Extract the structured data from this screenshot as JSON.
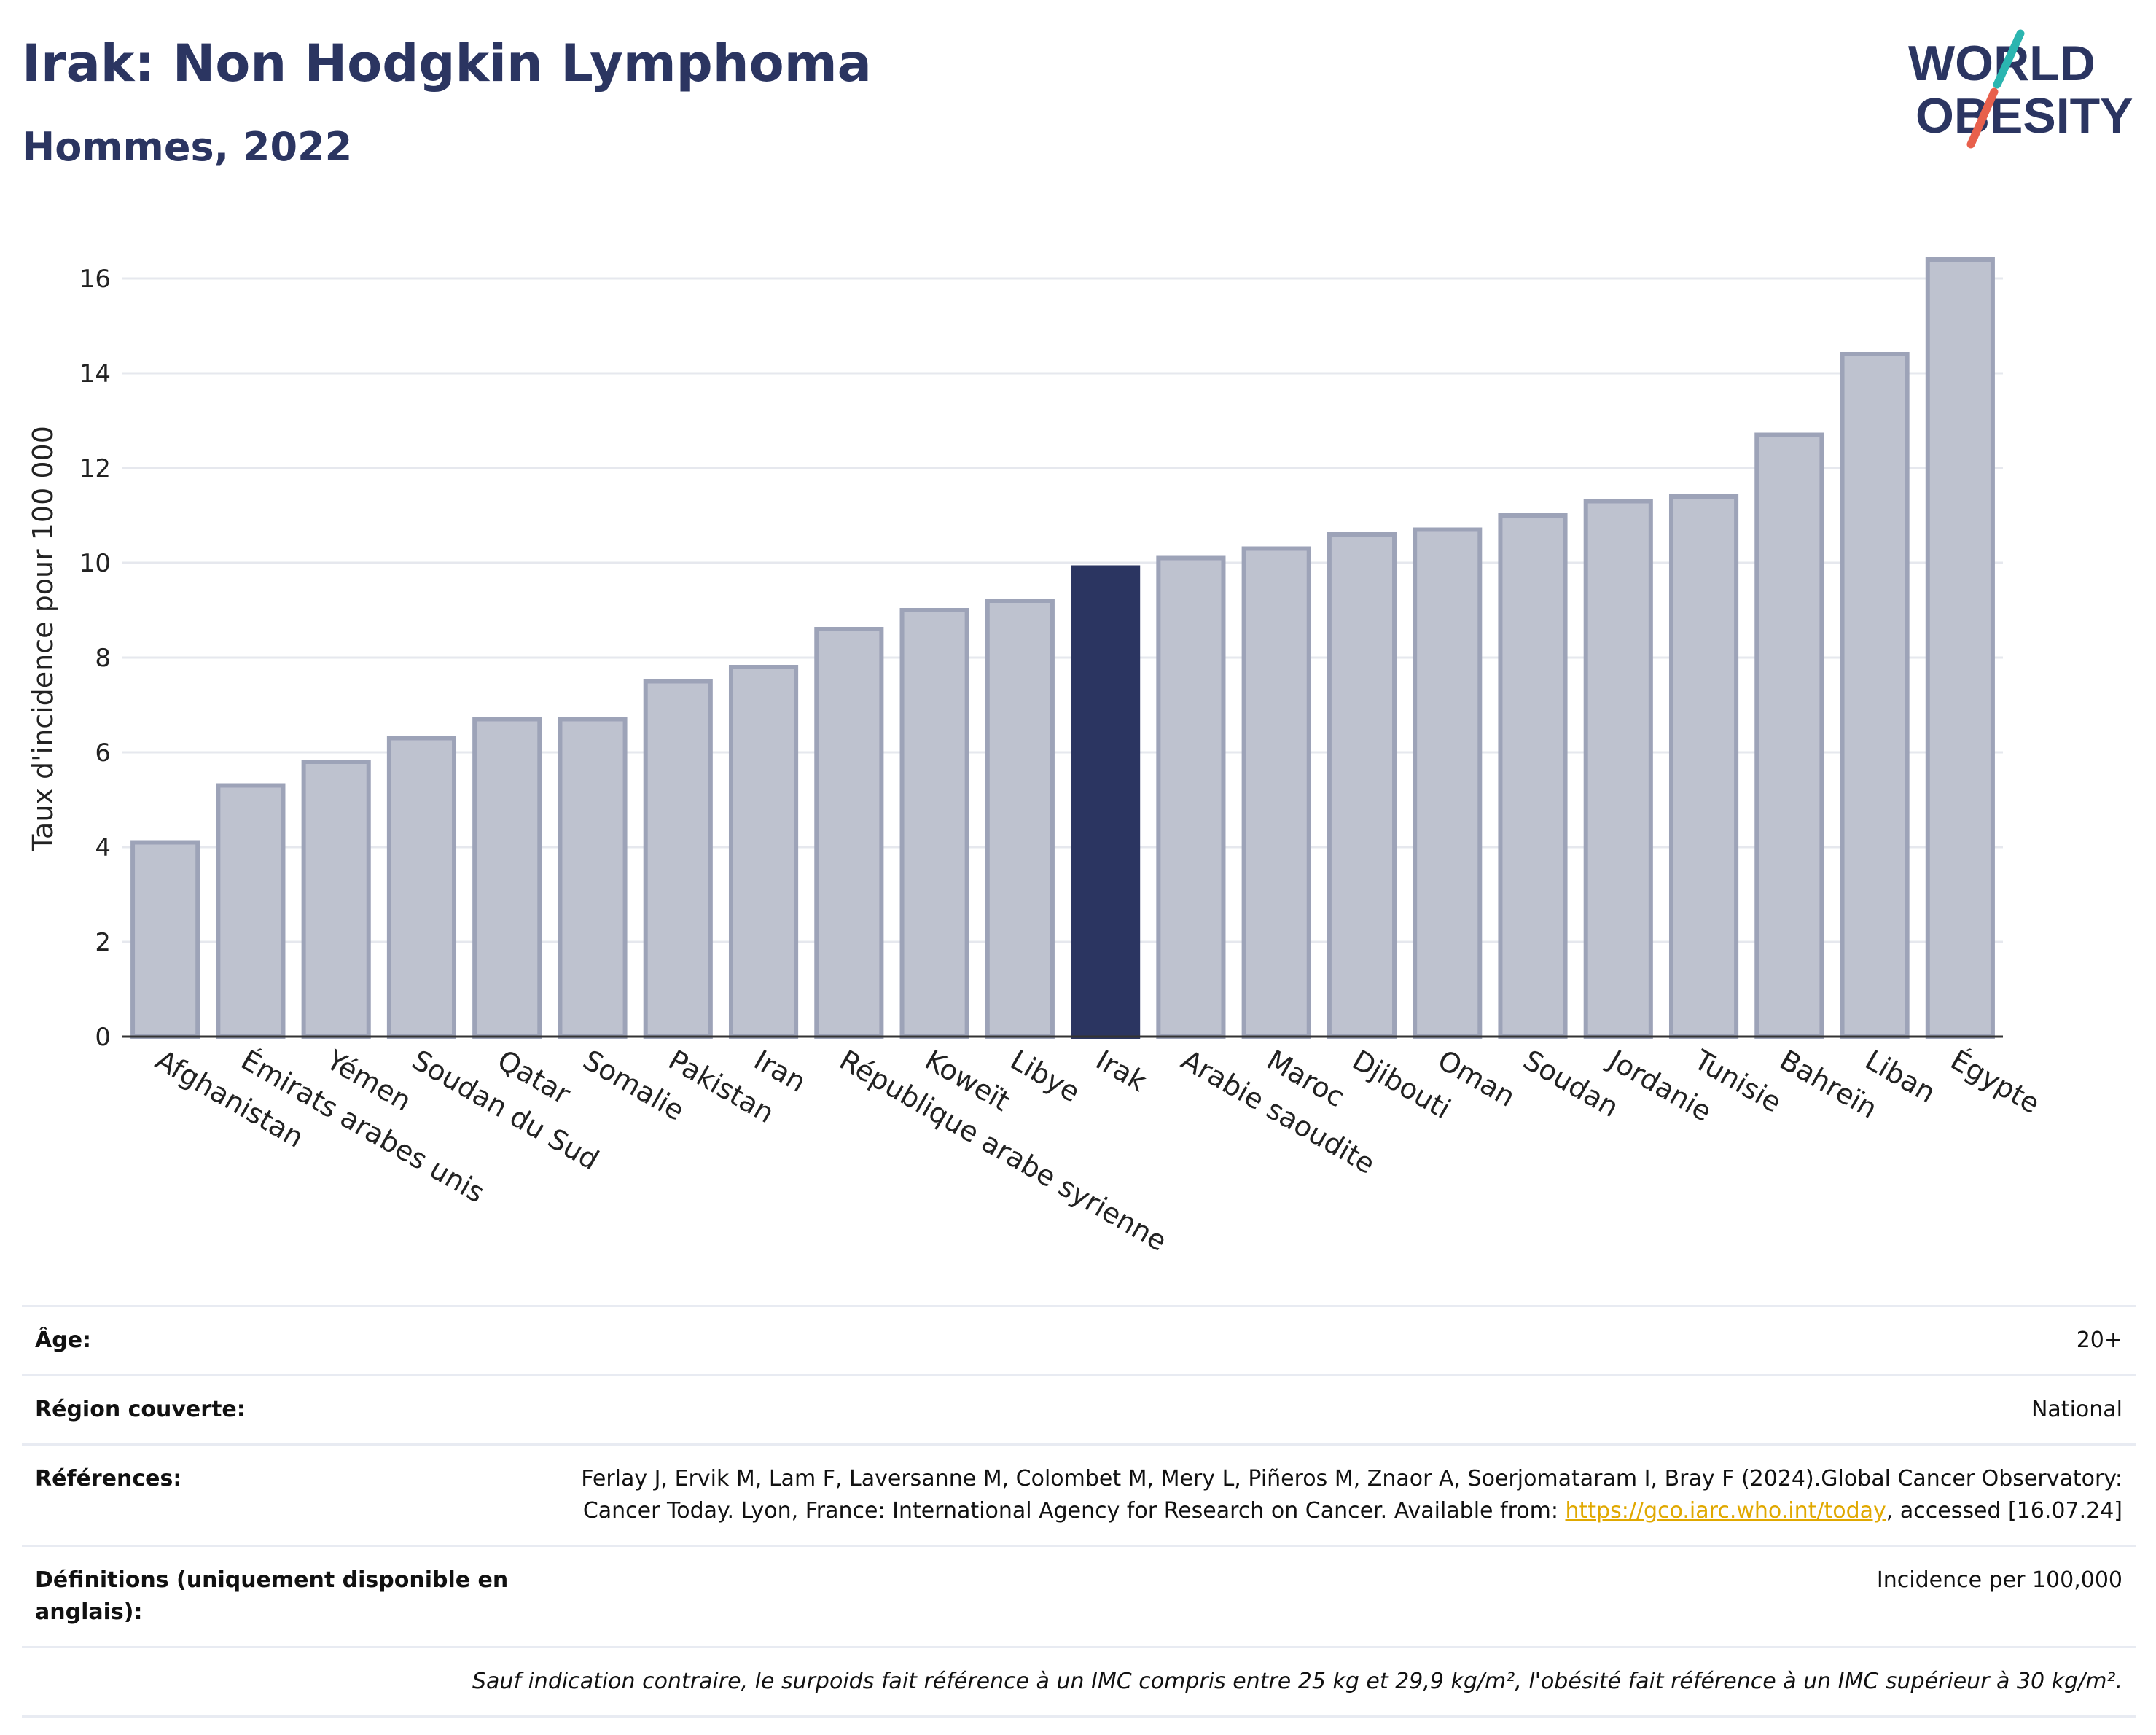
{
  "header": {
    "title": "Irak: Non Hodgkin Lymphoma",
    "subtitle": "Hommes, 2022"
  },
  "logo": {
    "line1": "WORLD",
    "line2": "OBESITY"
  },
  "colors": {
    "highlight": "#2b3561",
    "bar": "#bec2cf",
    "bar_edge": "#9da3b8",
    "title": "#2b3561"
  },
  "chart_data": {
    "type": "bar",
    "title": "Irak: Non Hodgkin Lymphoma",
    "subtitle": "Hommes, 2022",
    "xlabel": "",
    "ylabel": "Taux d'incidence pour 100 000",
    "ylim": [
      0,
      16.8
    ],
    "yticks": [
      0,
      2,
      4,
      6,
      8,
      10,
      12,
      14,
      16
    ],
    "grid": true,
    "highlight": "Irak",
    "categories": [
      "Afghanistan",
      "Émirats arabes unis",
      "Yémen",
      "Soudan du Sud",
      "Qatar",
      "Somalie",
      "Pakistan",
      "Iran",
      "République arabe syrienne",
      "Koweït",
      "Libye",
      "Irak",
      "Arabie saoudite",
      "Maroc",
      "Djibouti",
      "Oman",
      "Soudan",
      "Jordanie",
      "Tunisie",
      "Bahreïn",
      "Liban",
      "Égypte"
    ],
    "values": [
      4.1,
      5.3,
      5.8,
      6.3,
      6.7,
      6.7,
      7.5,
      7.8,
      8.6,
      9.0,
      9.2,
      9.9,
      10.1,
      10.3,
      10.6,
      10.7,
      11.0,
      11.3,
      11.4,
      12.7,
      14.4,
      16.4
    ]
  },
  "info": {
    "rows": [
      {
        "label": "Âge:",
        "value": "20+"
      },
      {
        "label": "Région couverte:",
        "value": "National"
      },
      {
        "label": "Références:",
        "value_pre": "Ferlay J, Ervik M, Lam F, Laversanne M, Colombet M, Mery L, Piñeros M, Znaor A, Soerjomataram I, Bray F (2024).Global Cancer Observatory: Cancer Today. Lyon, France: International Agency for Research on Cancer. Available from: ",
        "link": "https://gco.iarc.who.int/today",
        "value_post": ", accessed [16.07.24]"
      },
      {
        "label": "Définitions (uniquement disponible en anglais):",
        "value": "Incidence per 100,000"
      }
    ],
    "note": "Sauf indication contraire, le surpoids fait référence à un IMC compris entre 25 kg et 29,9 kg/m², l'obésité fait référence à un IMC supérieur à 30 kg/m²."
  }
}
